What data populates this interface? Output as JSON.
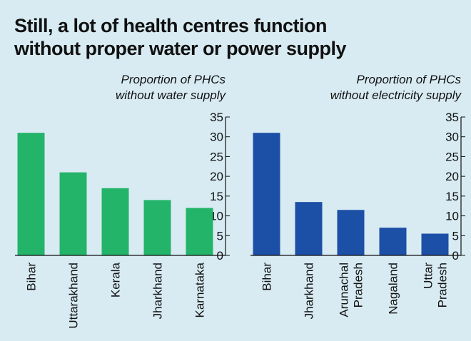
{
  "header": {
    "title_line1": "Still, a lot of health centres function",
    "title_line2": "without proper water or power supply"
  },
  "chart_data": [
    {
      "type": "bar",
      "subtitle": [
        "Proportion of PHCs",
        "without water supply"
      ],
      "categories": [
        [
          "Bihar"
        ],
        [
          "Uttarakhand"
        ],
        [
          "Kerala"
        ],
        [
          "Jharkhand"
        ],
        [
          "Karnataka"
        ]
      ],
      "values": [
        31,
        21,
        17,
        14,
        12
      ],
      "ylim": [
        0,
        35
      ],
      "yticks": [
        0,
        5,
        10,
        15,
        20,
        25,
        30,
        35
      ],
      "ytick_labels": [
        "0",
        "5",
        "10",
        "15",
        "20",
        "25",
        "30",
        "35"
      ],
      "yaxis_side": "right",
      "grid": false,
      "color": "#23b46a"
    },
    {
      "type": "bar",
      "subtitle": [
        "Proportion of PHCs",
        "without electricity supply"
      ],
      "categories": [
        [
          "Bihar"
        ],
        [
          "Jharkhand"
        ],
        [
          "Arunachal",
          "Pradesh"
        ],
        [
          "Nagaland"
        ],
        [
          "Uttar",
          "Pradesh"
        ]
      ],
      "values": [
        31,
        13.5,
        11.5,
        7,
        5.5
      ],
      "ylim": [
        0,
        35
      ],
      "yticks": [
        0,
        5,
        10,
        15,
        20,
        25,
        30,
        35
      ],
      "ytick_labels": [
        "0",
        "5",
        "10",
        "15",
        "20",
        "25",
        "30",
        "35"
      ],
      "yaxis_side": "right",
      "grid": false,
      "color": "#1c4fa6"
    }
  ]
}
